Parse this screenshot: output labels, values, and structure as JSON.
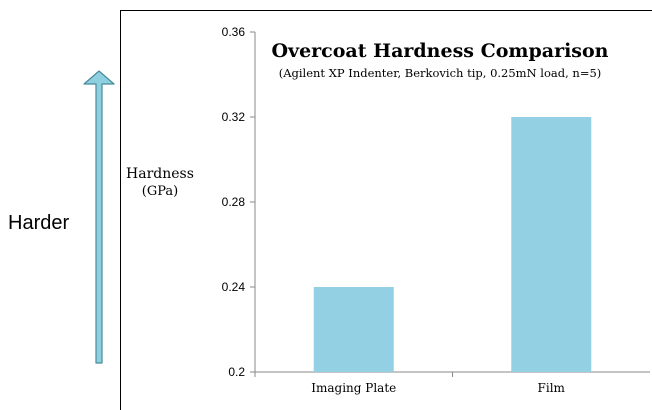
{
  "side": {
    "harder_label": "Harder",
    "arrow_color": "#8ecfe0",
    "arrow_outline": "#4a8a9a"
  },
  "chart_data": {
    "type": "bar",
    "title": "Overcoat Hardness Comparison",
    "subtitle": "(Agilent XP Indenter, Berkovich tip, 0.25mN load, n=5)",
    "ylabel": "Hardness",
    "ylabel_unit": "(GPa)",
    "xlabel": "",
    "categories": [
      "Imaging Plate",
      "Film"
    ],
    "values": [
      0.24,
      0.32
    ],
    "ylim": [
      0.2,
      0.36
    ],
    "yticks": [
      "0.2",
      "0.24",
      "0.28",
      "0.32",
      "0.36"
    ],
    "bar_color": "#93d0e4",
    "grid": false,
    "legend": "none"
  }
}
